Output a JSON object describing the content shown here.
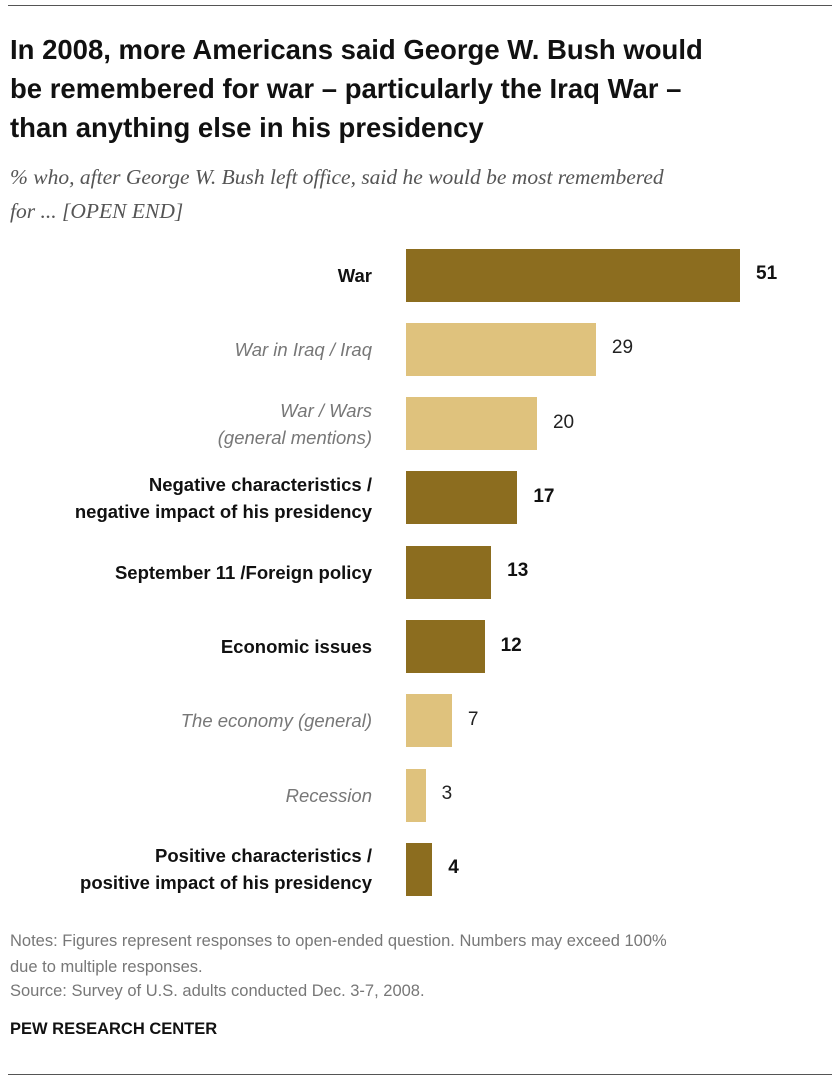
{
  "chart_data": {
    "type": "bar",
    "orientation": "horizontal",
    "title": "In 2008, more Americans said George W. Bush would\nbe remembered for war – particularly the Iraq War –\nthan anything else in his presidency",
    "subtitle": "% who, after George W. Bush left office, said he would be most remembered\nfor ...  [OPEN END]",
    "categories": [
      "War",
      "War in Iraq / Iraq",
      "War / Wars\n(general mentions)",
      "Negative characteristics /\nnegative impact of his presidency",
      "September 11 /Foreign policy",
      "Economic issues",
      "The economy (general)",
      "Recession",
      "Positive characteristics /\npositive impact of his presidency"
    ],
    "values": [
      51,
      29,
      20,
      17,
      13,
      12,
      7,
      3,
      4
    ],
    "colors": [
      "#8c6d1f",
      "#dfc27d",
      "#dfc27d",
      "#8c6d1f",
      "#8c6d1f",
      "#8c6d1f",
      "#dfc27d",
      "#dfc27d",
      "#8c6d1f"
    ],
    "main_color": "#8c6d1f",
    "notes": "Notes: Figures represent responses to open-ended question. Numbers may exceed 100%\ndue to multiple responses.",
    "source": "Source: Survey of U.S. adults conducted Dec. 3-7, 2008.",
    "brand": "PEW RESEARCH CENTER"
  }
}
